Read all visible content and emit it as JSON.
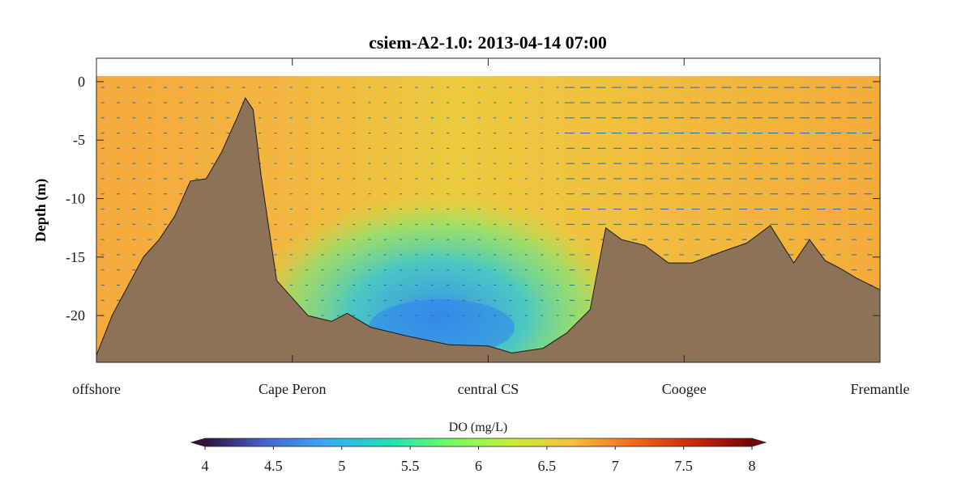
{
  "chart_data": {
    "type": "heatmap",
    "title": "csiem-A2-1.0: 2013-04-14 07:00",
    "ylabel": "Depth (m)",
    "xlabel": "",
    "ylim": [
      -24,
      2
    ],
    "yticks": [
      0,
      -5,
      -10,
      -15,
      -20
    ],
    "xtick_labels": [
      "offshore",
      "Cape Peron",
      "central CS",
      "Coogee",
      "Fremantle"
    ],
    "colorbar": {
      "label": "DO (mg/L)",
      "range": [
        4,
        8
      ],
      "ticks": [
        4,
        4.5,
        5,
        5.5,
        6,
        6.5,
        7,
        7.5,
        8
      ],
      "extend": "both",
      "colors": [
        "#30123b",
        "#4662d7",
        "#36aaf9",
        "#1ae4b6",
        "#72fe5e",
        "#c7ef34",
        "#fabf3b",
        "#f66b19",
        "#cb2a04",
        "#7a0403"
      ]
    },
    "bathymetry_depth": [
      {
        "x": 0.0,
        "depth": -23.4
      },
      {
        "x": 0.02,
        "depth": -20.0
      },
      {
        "x": 0.04,
        "depth": -17.5
      },
      {
        "x": 0.06,
        "depth": -15.0
      },
      {
        "x": 0.08,
        "depth": -13.5
      },
      {
        "x": 0.1,
        "depth": -11.5
      },
      {
        "x": 0.12,
        "depth": -8.5
      },
      {
        "x": 0.14,
        "depth": -8.3
      },
      {
        "x": 0.16,
        "depth": -6.0
      },
      {
        "x": 0.18,
        "depth": -3.0
      },
      {
        "x": 0.19,
        "depth": -1.4
      },
      {
        "x": 0.2,
        "depth": -2.4
      },
      {
        "x": 0.21,
        "depth": -8.0
      },
      {
        "x": 0.23,
        "depth": -17.0
      },
      {
        "x": 0.27,
        "depth": -20.0
      },
      {
        "x": 0.3,
        "depth": -20.5
      },
      {
        "x": 0.32,
        "depth": -19.8
      },
      {
        "x": 0.35,
        "depth": -21.0
      },
      {
        "x": 0.4,
        "depth": -21.8
      },
      {
        "x": 0.45,
        "depth": -22.5
      },
      {
        "x": 0.5,
        "depth": -22.6
      },
      {
        "x": 0.53,
        "depth": -23.2
      },
      {
        "x": 0.57,
        "depth": -22.8
      },
      {
        "x": 0.6,
        "depth": -21.5
      },
      {
        "x": 0.63,
        "depth": -19.5
      },
      {
        "x": 0.65,
        "depth": -12.5
      },
      {
        "x": 0.67,
        "depth": -13.5
      },
      {
        "x": 0.7,
        "depth": -14.0
      },
      {
        "x": 0.73,
        "depth": -15.5
      },
      {
        "x": 0.76,
        "depth": -15.5
      },
      {
        "x": 0.8,
        "depth": -14.5
      },
      {
        "x": 0.83,
        "depth": -13.8
      },
      {
        "x": 0.86,
        "depth": -12.3
      },
      {
        "x": 0.89,
        "depth": -15.5
      },
      {
        "x": 0.91,
        "depth": -13.5
      },
      {
        "x": 0.93,
        "depth": -15.3
      },
      {
        "x": 0.95,
        "depth": -16.0
      },
      {
        "x": 0.97,
        "depth": -16.8
      },
      {
        "x": 1.0,
        "depth": -17.8
      }
    ],
    "land_color": "#8c7358"
  }
}
